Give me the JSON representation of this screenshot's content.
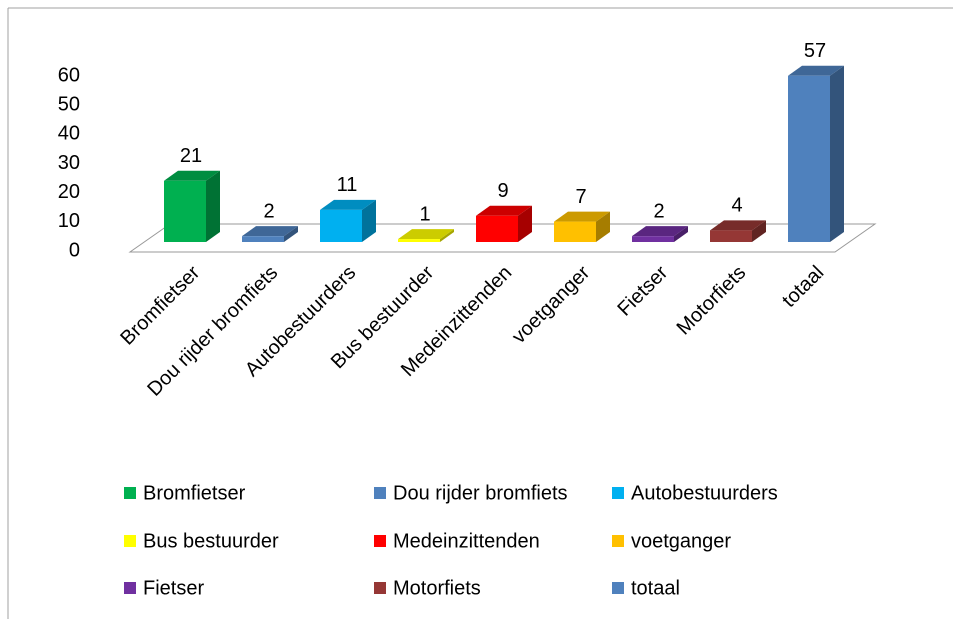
{
  "chart_data": {
    "type": "bar3d",
    "categories": [
      "Bromfietser",
      "Dou rijder bromfiets",
      "Autobestuurders",
      "Bus bestuurder",
      "Medeinzittenden",
      "voetganger",
      "Fietser",
      "Motorfiets",
      "totaal"
    ],
    "values": [
      21,
      2,
      11,
      1,
      9,
      7,
      2,
      4,
      57
    ],
    "colors": [
      "#00b050",
      "#4f81bd",
      "#00b0f0",
      "#ffff00",
      "#ff0000",
      "#ffc000",
      "#7030a0",
      "#953735",
      "#4f81bd"
    ],
    "ylim": [
      0,
      60
    ],
    "yticks": [
      0,
      10,
      20,
      30,
      40,
      50,
      60
    ],
    "grid": false,
    "legend": "bottom"
  }
}
